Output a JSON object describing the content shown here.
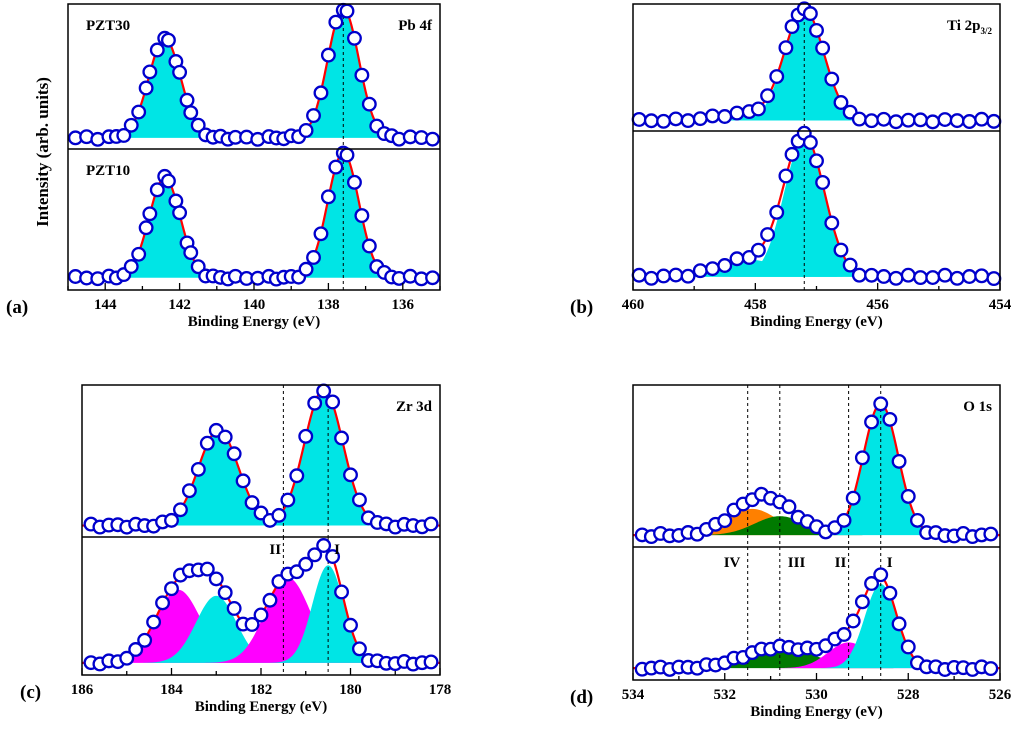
{
  "figure": {
    "ylabel": "Intensity (arb. units)",
    "colors": {
      "frame": "#000000",
      "fit": "#ff0000",
      "marker_edge": "#0000cc",
      "marker_face": "#ffffff",
      "comp_cyan": "#00e5e5",
      "comp_magenta": "#ff00ff",
      "comp_green": "#007a00",
      "comp_orange": "#ff8000",
      "guide": "#000000"
    }
  },
  "chart_data": [
    {
      "type": "line",
      "id": "a",
      "panel_label": "(a)",
      "xlabel": "Binding Energy (eV)",
      "xlim": [
        145,
        135
      ],
      "xticks": [
        144,
        142,
        140,
        138,
        136
      ],
      "xtick_labels": [
        "144",
        "142",
        "140",
        "138",
        "136"
      ],
      "guides": [
        137.6
      ],
      "subplots": [
        {
          "sample": "PZT30",
          "core_level": "Pb 4f",
          "core_level_sub": "",
          "bg": 0.04,
          "amp": 1.0,
          "points_x": [
            144.8,
            144.5,
            144.2,
            143.9,
            143.7,
            143.5,
            143.3,
            143.1,
            142.9,
            142.8,
            142.6,
            142.4,
            142.3,
            142.1,
            142.0,
            141.8,
            141.7,
            141.5,
            141.3,
            141.1,
            140.9,
            140.7,
            140.5,
            140.2,
            139.9,
            139.6,
            139.4,
            139.2,
            139.0,
            138.8,
            138.6,
            138.4,
            138.2,
            138.0,
            137.8,
            137.6,
            137.5,
            137.3,
            137.1,
            136.9,
            136.7,
            136.5,
            136.3,
            136.1,
            135.8,
            135.5,
            135.2
          ],
          "components": [
            {
              "color": "cyan",
              "center": 142.4,
              "width": 0.43,
              "height": 0.77
            },
            {
              "color": "cyan",
              "center": 137.6,
              "width": 0.42,
              "height": 1.0
            }
          ]
        },
        {
          "sample": "PZT10",
          "core_level": "",
          "core_level_sub": "",
          "bg": 0.05,
          "amp": 1.0,
          "points_x": [
            144.8,
            144.5,
            144.2,
            143.9,
            143.7,
            143.5,
            143.3,
            143.1,
            142.9,
            142.8,
            142.6,
            142.4,
            142.3,
            142.1,
            142.0,
            141.8,
            141.7,
            141.5,
            141.3,
            141.1,
            140.9,
            140.7,
            140.5,
            140.2,
            139.9,
            139.6,
            139.4,
            139.2,
            139.0,
            138.8,
            138.6,
            138.4,
            138.2,
            138.0,
            137.8,
            137.6,
            137.5,
            137.3,
            137.1,
            136.9,
            136.7,
            136.5,
            136.3,
            136.1,
            135.8,
            135.5,
            135.2
          ],
          "components": [
            {
              "color": "cyan",
              "center": 142.4,
              "width": 0.42,
              "height": 0.8
            },
            {
              "color": "cyan",
              "center": 137.6,
              "width": 0.42,
              "height": 1.0
            }
          ]
        }
      ]
    },
    {
      "type": "line",
      "id": "b",
      "panel_label": "(b)",
      "xlabel": "Binding Energy (eV)",
      "xlim": [
        460,
        454
      ],
      "xticks": [
        460,
        458,
        456,
        454
      ],
      "xtick_labels": [
        "460",
        "458",
        "456",
        "454"
      ],
      "guides": [
        457.2
      ],
      "subplots": [
        {
          "sample": "",
          "core_level": "Ti 2p",
          "core_level_sub": "3/2",
          "bg": 0.04,
          "amp": 1.0,
          "points_x": [
            459.9,
            459.7,
            459.5,
            459.3,
            459.1,
            458.9,
            458.7,
            458.5,
            458.3,
            458.1,
            457.95,
            457.8,
            457.65,
            457.5,
            457.4,
            457.3,
            457.2,
            457.1,
            457.0,
            456.9,
            456.75,
            456.6,
            456.45,
            456.3,
            456.1,
            455.9,
            455.7,
            455.5,
            455.3,
            455.1,
            454.9,
            454.7,
            454.5,
            454.3,
            454.1
          ],
          "components": [
            {
              "color": "cyan",
              "center": 457.2,
              "width": 0.32,
              "height": 1.0
            },
            {
              "color": "cyan",
              "center": 458.2,
              "width": 0.45,
              "height": 0.06
            }
          ]
        },
        {
          "sample": "",
          "core_level": "",
          "core_level_sub": "",
          "bg": 0.05,
          "amp": 1.0,
          "points_x": [
            459.9,
            459.7,
            459.5,
            459.3,
            459.1,
            458.9,
            458.7,
            458.5,
            458.3,
            458.1,
            457.95,
            457.8,
            457.65,
            457.5,
            457.4,
            457.3,
            457.2,
            457.1,
            457.0,
            456.9,
            456.75,
            456.6,
            456.45,
            456.3,
            456.1,
            455.9,
            455.7,
            455.5,
            455.3,
            455.1,
            454.9,
            454.7,
            454.5,
            454.3,
            454.1
          ],
          "components": [
            {
              "color": "cyan",
              "center": 457.2,
              "width": 0.33,
              "height": 0.97
            },
            {
              "color": "cyan",
              "center": 458.1,
              "width": 0.5,
              "height": 0.12
            }
          ]
        }
      ]
    },
    {
      "type": "line",
      "id": "c",
      "panel_label": "(c)",
      "xlabel": "Binding Energy (eV)",
      "xlim": [
        186,
        178
      ],
      "xticks": [
        186,
        184,
        182,
        180,
        178
      ],
      "xtick_labels": [
        "186",
        "184",
        "182",
        "180",
        "178"
      ],
      "guides": [
        181.5,
        180.5
      ],
      "markers": [
        "II",
        "I"
      ],
      "subplots": [
        {
          "sample": "",
          "core_level": "Zr 3d",
          "core_level_sub": "",
          "bg": 0.04,
          "amp": 1.0,
          "points_x": [
            185.8,
            185.6,
            185.4,
            185.2,
            185.0,
            184.8,
            184.6,
            184.4,
            184.2,
            184.0,
            183.8,
            183.6,
            183.4,
            183.2,
            183.0,
            182.8,
            182.6,
            182.4,
            182.2,
            182.0,
            181.8,
            181.6,
            181.4,
            181.2,
            181.0,
            180.8,
            180.6,
            180.4,
            180.2,
            180.0,
            179.8,
            179.6,
            179.4,
            179.2,
            179.0,
            178.8,
            178.6,
            178.4,
            178.2
          ],
          "components": [
            {
              "color": "cyan",
              "center": 182.95,
              "width": 0.45,
              "height": 0.7
            },
            {
              "color": "cyan",
              "center": 180.6,
              "width": 0.43,
              "height": 1.0
            }
          ]
        },
        {
          "sample": "",
          "core_level": "",
          "core_level_sub": "",
          "bg": 0.05,
          "amp": 1.0,
          "points_x": [
            185.8,
            185.6,
            185.4,
            185.2,
            185.0,
            184.8,
            184.6,
            184.4,
            184.2,
            184.0,
            183.8,
            183.6,
            183.4,
            183.2,
            183.0,
            182.8,
            182.6,
            182.4,
            182.2,
            182.0,
            181.8,
            181.6,
            181.4,
            181.2,
            181.0,
            180.8,
            180.6,
            180.4,
            180.2,
            180.0,
            179.8,
            179.6,
            179.4,
            179.2,
            179.0,
            178.8,
            178.6,
            178.4,
            178.2
          ],
          "components": [
            {
              "color": "magenta",
              "center": 183.85,
              "width": 0.5,
              "height": 0.6
            },
            {
              "color": "cyan",
              "center": 183.0,
              "width": 0.45,
              "height": 0.55
            },
            {
              "color": "magenta",
              "center": 181.4,
              "width": 0.5,
              "height": 0.7
            },
            {
              "color": "cyan",
              "center": 180.5,
              "width": 0.35,
              "height": 0.8
            }
          ]
        }
      ]
    },
    {
      "type": "line",
      "id": "d",
      "panel_label": "(d)",
      "xlabel": "Binding Energy (eV)",
      "xlim": [
        534,
        526
      ],
      "xticks": [
        534,
        532,
        530,
        528,
        526
      ],
      "xtick_labels": [
        "534",
        "532",
        "530",
        "528",
        "526"
      ],
      "guides": [
        531.5,
        530.8,
        529.3,
        528.6
      ],
      "markers": [
        "IV",
        "III",
        "II",
        "I"
      ],
      "subplots": [
        {
          "sample": "",
          "core_level": "O 1s",
          "core_level_sub": "",
          "bg": 0.04,
          "amp": 1.0,
          "points_x": [
            533.8,
            533.6,
            533.4,
            533.2,
            533.0,
            532.8,
            532.6,
            532.4,
            532.2,
            532.0,
            531.8,
            531.6,
            531.4,
            531.2,
            531.0,
            530.8,
            530.6,
            530.4,
            530.2,
            530.0,
            529.8,
            529.6,
            529.4,
            529.2,
            529.0,
            528.8,
            528.6,
            528.4,
            528.2,
            528.0,
            527.8,
            527.6,
            527.4,
            527.2,
            527.0,
            526.8,
            526.6,
            526.4,
            526.2
          ],
          "components": [
            {
              "color": "orange",
              "center": 531.4,
              "width": 0.55,
              "height": 0.18
            },
            {
              "color": "green",
              "center": 530.8,
              "width": 0.55,
              "height": 0.13
            },
            {
              "color": "cyan",
              "center": 528.6,
              "width": 0.38,
              "height": 0.9
            }
          ]
        },
        {
          "sample": "",
          "core_level": "",
          "core_level_sub": "",
          "bg": 0.05,
          "amp": 1.0,
          "points_x": [
            533.8,
            533.6,
            533.4,
            533.2,
            533.0,
            532.8,
            532.6,
            532.4,
            532.2,
            532.0,
            531.8,
            531.6,
            531.4,
            531.2,
            531.0,
            530.8,
            530.6,
            530.4,
            530.2,
            530.0,
            529.8,
            529.6,
            529.4,
            529.2,
            529.0,
            528.8,
            528.6,
            528.4,
            528.2,
            528.0,
            527.8,
            527.6,
            527.4,
            527.2,
            527.0,
            526.8,
            526.6,
            526.4,
            526.2
          ],
          "components": [
            {
              "color": "green",
              "center": 530.8,
              "width": 0.75,
              "height": 0.18
            },
            {
              "color": "magenta",
              "center": 529.3,
              "width": 0.45,
              "height": 0.22
            },
            {
              "color": "cyan",
              "center": 528.6,
              "width": 0.35,
              "height": 0.72
            }
          ]
        }
      ]
    }
  ]
}
